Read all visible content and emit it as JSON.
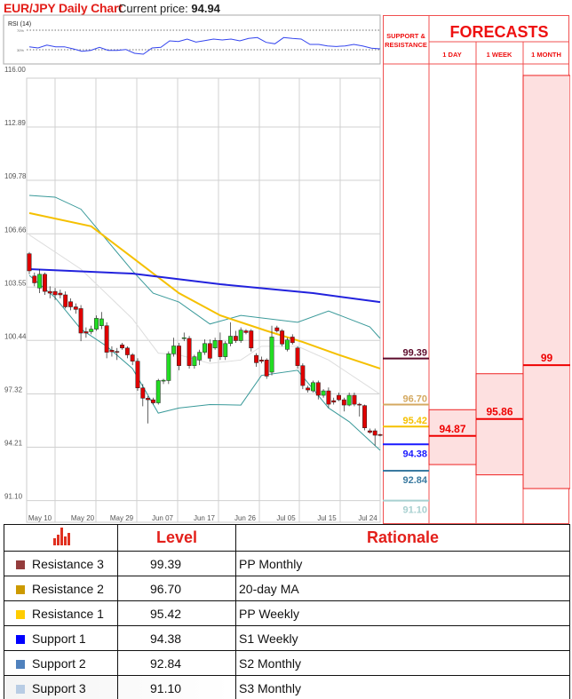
{
  "header": {
    "title": "EUR/JPY Daily Chart",
    "current_price_label": "Current price:",
    "current_price": "94.94"
  },
  "rsi": {
    "label": "RSI (14)",
    "levels": [
      "70%",
      "30%"
    ],
    "values": [
      36,
      33.6,
      39.6,
      36,
      36,
      31.8,
      26.9,
      28.7,
      34.9,
      28.7,
      28.7,
      30.5,
      22.7,
      20.9,
      33.6,
      34.9,
      48.2,
      46.9,
      51.8,
      45.8,
      48.7,
      51.8,
      50,
      51.8,
      48.2,
      53.1,
      54.9,
      45.1,
      42.2,
      54.9,
      53.1,
      51.8,
      40.9,
      40.9,
      37.8,
      36.7,
      37.8,
      40.9,
      37.8,
      33.1,
      31.8
    ]
  },
  "chart_data": {
    "type": "candlestick",
    "title": "EUR/JPY Daily Chart",
    "ylim": [
      91.1,
      116.0
    ],
    "y_ticks": [
      "116.00",
      "112.89",
      "109.78",
      "106.66",
      "103.55",
      "100.44",
      "97.32",
      "94.21",
      "91.10"
    ],
    "x_ticks": [
      "May 10",
      "May 20",
      "May 29",
      "Jun 07",
      "Jun 17",
      "Jun 26",
      "Jul 05",
      "Jul 15",
      "Jul 24"
    ],
    "grid": true,
    "colors": {
      "up": "#22dd22",
      "down": "#e00000",
      "ma_long": "#2222dd",
      "ma_mid": "#f5c000",
      "bollinger": "#3a9a9a",
      "ma_short": "#dddddd"
    },
    "ohlc": [
      [
        105.5,
        105.6,
        104.3,
        104.5
      ],
      [
        104.2,
        104.4,
        103.6,
        103.8
      ],
      [
        103.5,
        104.6,
        103.2,
        104.3
      ],
      [
        104.3,
        104.4,
        103.1,
        103.3
      ],
      [
        103.3,
        103.6,
        102.9,
        103.2
      ],
      [
        103.3,
        103.5,
        102.8,
        103.1
      ],
      [
        103.2,
        103.4,
        102.9,
        103.1
      ],
      [
        103.1,
        103.3,
        102.3,
        102.4
      ],
      [
        102.7,
        102.9,
        102.2,
        102.4
      ],
      [
        102.4,
        102.6,
        102.0,
        102.25
      ],
      [
        102.3,
        102.5,
        100.4,
        100.87
      ],
      [
        100.95,
        101.2,
        100.6,
        100.87
      ],
      [
        100.95,
        101.3,
        100.8,
        101.1
      ],
      [
        101.1,
        101.9,
        101.0,
        101.73
      ],
      [
        101.3,
        102.1,
        101.1,
        101.7
      ],
      [
        101.3,
        101.5,
        99.4,
        99.75
      ],
      [
        99.87,
        100.1,
        99.5,
        99.78
      ],
      [
        99.8,
        100.0,
        99.3,
        99.75
      ],
      [
        100.18,
        100.3,
        99.9,
        100.0
      ],
      [
        100.0,
        100.1,
        99.4,
        99.6
      ],
      [
        99.6,
        99.7,
        99.0,
        99.23
      ],
      [
        99.23,
        99.4,
        97.5,
        97.67
      ],
      [
        97.67,
        97.9,
        96.6,
        97.07
      ],
      [
        97.07,
        97.2,
        95.6,
        96.98
      ],
      [
        96.98,
        97.1,
        96.7,
        96.8
      ],
      [
        96.8,
        98.2,
        96.7,
        98.1
      ],
      [
        98.1,
        98.2,
        97.9,
        98.12
      ],
      [
        98.1,
        99.8,
        97.9,
        99.66
      ],
      [
        99.66,
        100.6,
        99.5,
        100.12
      ],
      [
        100.12,
        100.3,
        98.7,
        98.97
      ],
      [
        100.56,
        100.9,
        100.4,
        100.6
      ],
      [
        100.56,
        100.7,
        98.8,
        98.97
      ],
      [
        98.97,
        99.6,
        98.8,
        99.49
      ],
      [
        99.3,
        99.9,
        99.0,
        99.75
      ],
      [
        99.75,
        100.5,
        99.6,
        100.26
      ],
      [
        100.26,
        100.5,
        99.2,
        99.4
      ],
      [
        100.0,
        100.6,
        99.9,
        100.44
      ],
      [
        100.44,
        100.9,
        99.3,
        99.49
      ],
      [
        99.49,
        100.4,
        99.3,
        100.26
      ],
      [
        100.26,
        101.5,
        100.1,
        100.69
      ],
      [
        100.69,
        101.0,
        100.3,
        100.43
      ],
      [
        100.43,
        101.2,
        100.3,
        101.04
      ],
      [
        101.0,
        101.1,
        100.8,
        100.9
      ],
      [
        101.0,
        101.1,
        99.8,
        100.0
      ],
      [
        99.57,
        99.7,
        98.9,
        99.14
      ],
      [
        99.3,
        99.5,
        99.1,
        99.23
      ],
      [
        99.3,
        99.4,
        98.2,
        98.36
      ],
      [
        98.59,
        101.3,
        98.4,
        100.64
      ],
      [
        101.18,
        101.3,
        100.9,
        101.0
      ],
      [
        101.0,
        101.1,
        100.1,
        100.23
      ],
      [
        99.92,
        100.6,
        99.8,
        100.47
      ],
      [
        100.64,
        100.8,
        100.2,
        100.31
      ],
      [
        100.0,
        100.1,
        98.8,
        98.97
      ],
      [
        98.97,
        99.1,
        97.6,
        97.81
      ],
      [
        97.67,
        97.8,
        97.4,
        97.55
      ],
      [
        97.5,
        98.1,
        97.4,
        97.98
      ],
      [
        97.98,
        98.1,
        97.0,
        97.24
      ],
      [
        97.24,
        97.6,
        97.1,
        97.5
      ],
      [
        97.5,
        97.7,
        96.5,
        96.72
      ],
      [
        96.93,
        97.1,
        96.7,
        96.84
      ],
      [
        97.24,
        97.4,
        96.9,
        96.98
      ],
      [
        96.98,
        97.1,
        96.3,
        96.67
      ],
      [
        96.67,
        97.4,
        96.6,
        97.24
      ],
      [
        97.24,
        97.4,
        96.6,
        96.72
      ],
      [
        96.72,
        96.8,
        96.0,
        96.67
      ],
      [
        96.64,
        96.7,
        95.2,
        95.34
      ],
      [
        95.17,
        95.3,
        95.0,
        95.08
      ],
      [
        95.17,
        95.3,
        94.3,
        94.91
      ],
      [
        94.95,
        95.0,
        94.85,
        94.93
      ]
    ],
    "lines": [
      {
        "key": "ma_short",
        "points": [
          [
            0,
            106.6
          ],
          [
            10,
            104.6
          ],
          [
            20,
            101.7
          ],
          [
            25,
            99.7
          ],
          [
            29,
            99.6
          ],
          [
            35,
            99.1
          ],
          [
            41,
            99.3
          ],
          [
            45,
            100.1
          ],
          [
            52,
            100.1
          ],
          [
            58,
            99.3
          ],
          [
            62,
            98.5
          ],
          [
            68,
            97.3
          ]
        ]
      },
      {
        "key": "bollinger",
        "points": [
          [
            0,
            108.9
          ],
          [
            5,
            108.8
          ],
          [
            10,
            108.1
          ],
          [
            15,
            106.3
          ],
          [
            20,
            104.5
          ],
          [
            24,
            103.2
          ],
          [
            29,
            102.68
          ],
          [
            35,
            101.4
          ],
          [
            41,
            101.9
          ],
          [
            52,
            101.5
          ],
          [
            58,
            102.16
          ],
          [
            66,
            101.23
          ],
          [
            68,
            100.56
          ]
        ]
      },
      {
        "key": "bollinger",
        "points": [
          [
            0,
            104.24
          ],
          [
            5,
            102.94
          ],
          [
            10,
            101.1
          ],
          [
            15,
            100.1
          ],
          [
            20,
            98.8
          ],
          [
            25,
            96.2
          ],
          [
            29,
            96.5
          ],
          [
            35,
            96.7
          ],
          [
            41,
            96.67
          ],
          [
            45,
            98.4
          ],
          [
            52,
            98.7
          ],
          [
            58,
            96.5
          ],
          [
            62,
            95.7
          ],
          [
            68,
            94.03
          ]
        ]
      },
      {
        "key": "ma_mid",
        "points": [
          [
            0,
            107.87
          ],
          [
            12,
            107.1
          ],
          [
            20,
            105.27
          ],
          [
            29,
            103.2
          ],
          [
            37,
            101.9
          ],
          [
            46,
            101.0
          ],
          [
            53,
            100.35
          ],
          [
            60,
            99.6
          ],
          [
            68,
            98.8
          ]
        ]
      },
      {
        "key": "ma_long",
        "points": [
          [
            0,
            104.6
          ],
          [
            20,
            104.34
          ],
          [
            37,
            103.72
          ],
          [
            55,
            103.2
          ],
          [
            68,
            102.68
          ]
        ]
      }
    ]
  },
  "forecasts": {
    "title": "FORECASTS",
    "sr_header": "SUPPORT & RESISTANCE",
    "columns": [
      {
        "label": "1 DAY",
        "value": 94.87,
        "range": [
          93.2,
          96.4
        ]
      },
      {
        "label": "1 WEEK",
        "value": 95.86,
        "range": [
          92.6,
          98.5
        ]
      },
      {
        "label": "1 MONTH",
        "value": 99,
        "range": [
          91.8,
          115.9
        ]
      }
    ],
    "sr_levels": [
      {
        "value": "99.39",
        "color": "#5c0a2a"
      },
      {
        "value": "96.70",
        "color": "#d4a960"
      },
      {
        "value": "95.42",
        "color": "#f5c000"
      },
      {
        "value": "94.38",
        "color": "#1a1aff"
      },
      {
        "value": "92.84",
        "color": "#3a7aa0"
      },
      {
        "value": "91.10",
        "color": "#a8d0d0"
      }
    ]
  },
  "table": {
    "headers": {
      "icon": "bar-chart-icon",
      "level": "Level",
      "rationale": "Rationale"
    },
    "rows": [
      {
        "name": "Resistance 3",
        "level": "99.39",
        "rationale": "PP Monthly",
        "color": "#943c3c"
      },
      {
        "name": "Resistance 2",
        "level": "96.70",
        "rationale": "20-day MA",
        "color": "#cc9a00"
      },
      {
        "name": "Resistance 1",
        "level": "95.42",
        "rationale": "PP Weekly",
        "color": "#ffcc00"
      },
      {
        "name": "Support 1",
        "level": "94.38",
        "rationale": "S1 Weekly",
        "color": "#0000ff"
      },
      {
        "name": "Support 2",
        "level": "92.84",
        "rationale": "S2 Monthly",
        "color": "#4f81bd"
      },
      {
        "name": "Support 3",
        "level": "91.10",
        "rationale": "S3 Monthly",
        "color": "#b8cce4"
      }
    ]
  }
}
